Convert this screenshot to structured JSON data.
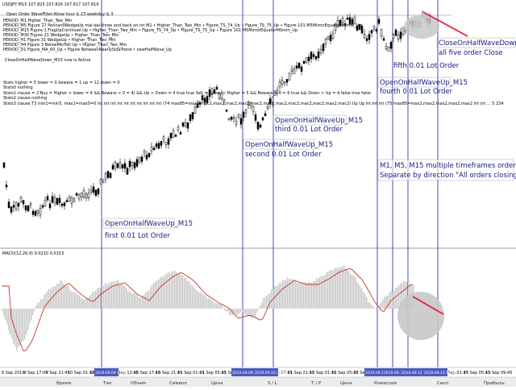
{
  "chart_header": {
    "symbol_line": "USDJPY,M15  107.825 107.826 107.817 107.819",
    "status_line": "Open Order WaveFilter:Allow hour & 23 weekday & 3"
  },
  "indicator_lines": [
    "PERIOD_M1   Higher_Than_Two_Min",
    "PERIOD_M5   Figure 17 PennantWedgeUp mal-dai-three and back on int M1  •  Higher_Than_Two_Min  •  Figure_TS_74_Up  •  Figure_TS_75_Up  •  Figure 101 M5MirrorEquatorMSmm_Up",
    "PERIOD_M15  Figure 1 FlagUpContinuel:Up  •  Higher_Than_Two_Min  •  Figure_TS_74_Up  •  Figure_TS_75_Up  •  Figure 101 M5MirrorEquatorMSmm_Up",
    "PERIOD_M30  Figure 21 WedgeUp  •  Higher_Than_Two_Min",
    "PERIOD_H1   Figure 31 WedgeUp  •  Higher_Than_Two_Min",
    "PERIOD_H4   Figure 3 BelowMinFall Up  •  Higher_Than_Two_Min",
    "PERIOD_D1   Figure_MA_60_Up  •  Figure BetweenNearlySideTrend  •  newHalfWave_Up"
  ],
  "wave_status": "CloseOnHalfWaveDown_M15 now is Active",
  "stats_lines": [
    "Stats      higher = 5 lower = 0 beware = 1 up = 12 down = 0",
    "Stats0     nothing",
    "Stats1 clause = 2  Buy = Higher > lower = 4 && Beware < 0 = 4) && Up > Down = 4 true true Sell = Lower > Higher = 5 && Beware < 0 = 6 true && Down > Up = 4 false true false",
    "Stats2 clause nothing",
    "Stats3 clause T3 min1=min5, max1=max5=0 int int int int int int int int int int  (74 max85=max2,mac2,max2,mac2,mac2,mac2,mac2,mac2,mac2,mac2,mac2,max2,mac2)  Up Up int int int (75 max85=max2,max2,max2,max2,max2 int int ... 5 234"
  ],
  "annotations": {
    "first_title": "OpenOnHalfWaveUp_M15",
    "first_sub": "first 0.01 Lot Order",
    "second_title": "OpenOnHalfWaveUp_M15",
    "second_sub": "second 0.01 Lot Order",
    "third_title": "OpenOnHalfWaveUp_M15",
    "third_sub": "third 0.01 Lot Order",
    "fourth_title": "OpenOnHalfWaveUp_M15",
    "fourth_sub": "fourth 0.01 Lot Order",
    "fifth_sub": "fifth 0.01 Lot Order",
    "close_title": "CloseOnHalfWaveDown_M15",
    "close_sub": "all five order Close",
    "note_line1": "M1, M5, M15 multiple timeframes order opening.",
    "note_line2": "Separate by direction \"All orders closing\""
  },
  "macd_label": "MACD(12,26,9) 0.0210 0.0153",
  "time_axis": [
    "6 Sep 2019",
    "9 Sep 17:00",
    "9 Sep 21:45",
    "10 Sep 01:45",
    "10 Sep 05:45",
    "10 Sep 13:45",
    "10 Sep 17:45",
    "10 Sep 21:45",
    "11 Sep 01:45",
    "11 Sep 05:45",
    "11 Sep 09:45",
    "11 Sep 13:45",
    "11 Sep 17:45",
    "11 Sep 21:45",
    "12 Sep 01:45",
    "12 Sep 05:45",
    "12 Sep 09:45",
    "12 Sep 13:45",
    "12 Sep 17:45",
    "12 Sep 21:45",
    "13 Sep 01:45",
    "13 Sep 05:45",
    "13 Sep 09:45"
  ],
  "time_markers": [
    "2019.09.09 17:45",
    "2019.09.09 23:45",
    "2019.09.10 20:45",
    "2019.09.11 05:45",
    "2019.09.12 09:45",
    "2019.09.12 21:45",
    "2019.09.13 12:45"
  ],
  "terminal_tabs": [
    "Время",
    "Тип",
    "Объем",
    "Символ",
    "Цена",
    "S / L",
    "T / P",
    "Цена",
    "Комиссия",
    "Своп",
    "Прибыль"
  ],
  "colors": {
    "candle": "#000000",
    "vline": "#3434b8",
    "ann_text": "#1a1a7a",
    "signal": "#c0392b",
    "close_arrow": "#e0203a",
    "macd_bar": "#c8c8c8",
    "hline": "#c8a870"
  }
}
